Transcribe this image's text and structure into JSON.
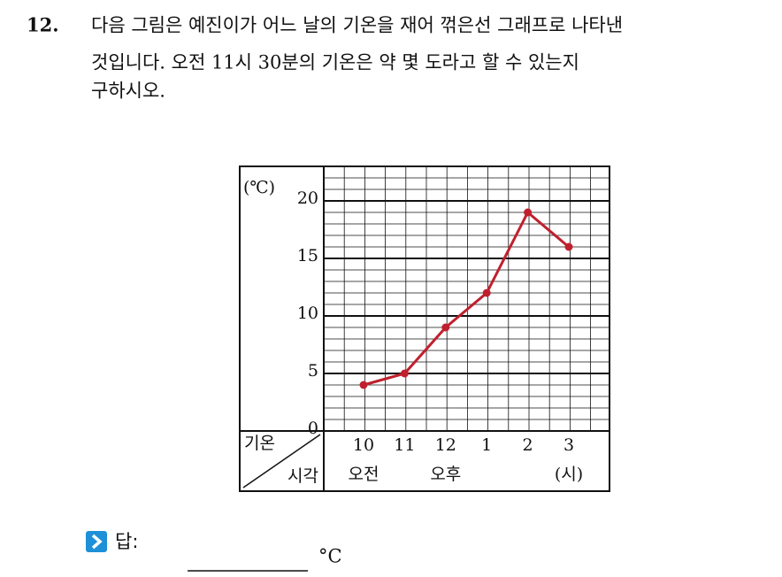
{
  "question": {
    "number": "12.",
    "lines": [
      "다음 그림은 예진이가 어느 날의 기온을 재어 꺾은선 그래프로 나타낸",
      "것입니다. 오전 11시 30분의 기온은 약 몇 도라고 할 수 있는지",
      "구하시오."
    ]
  },
  "chart_data": {
    "type": "line",
    "y_unit": "(℃)",
    "x_unit": "(시)",
    "row_header": "기온",
    "column_header": "시각",
    "categories": [
      "10",
      "11",
      "12",
      "1",
      "2",
      "3"
    ],
    "period_labels": [
      "오전",
      "오후"
    ],
    "values": [
      4,
      5,
      9,
      12,
      19,
      16
    ],
    "color": "#c0202e",
    "ylim": [
      0,
      23
    ],
    "yticks": [
      0,
      5,
      10,
      15,
      20
    ],
    "minor_grid_step": 1,
    "grid": true
  },
  "answer": {
    "label": "답:",
    "unit": "°C"
  }
}
